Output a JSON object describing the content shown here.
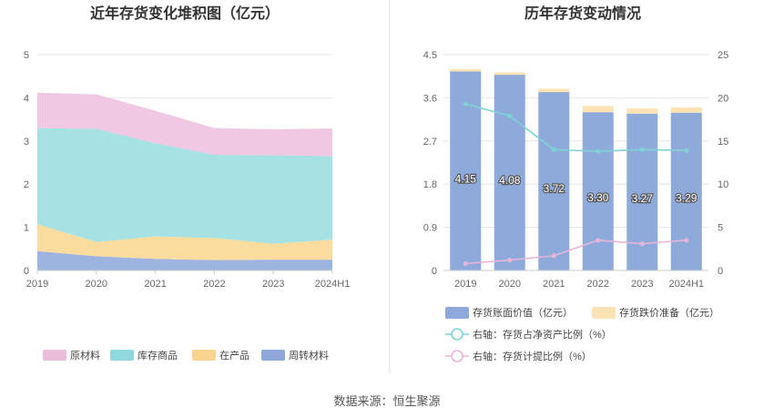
{
  "source_label": "数据来源：恒生聚源",
  "chart_data": [
    {
      "type": "area",
      "stacked": true,
      "title": "近年存货变化堆积图（亿元）",
      "categories": [
        "2019",
        "2020",
        "2021",
        "2022",
        "2023",
        "2024H1"
      ],
      "y_ticks": [
        "0",
        "1",
        "2",
        "3",
        "4",
        "5"
      ],
      "ylim": [
        0,
        5
      ],
      "grid": true,
      "legend_position": "bottom",
      "series": [
        {
          "name": "周转材料",
          "color": "#9db3e0",
          "values": [
            0.45,
            0.33,
            0.27,
            0.24,
            0.25,
            0.25
          ]
        },
        {
          "name": "在产品",
          "color": "#fbdc9f",
          "values": [
            0.62,
            0.33,
            0.52,
            0.51,
            0.37,
            0.46
          ]
        },
        {
          "name": "库存商品",
          "color": "#a6e1e3",
          "values": [
            2.23,
            2.62,
            2.16,
            1.93,
            2.05,
            1.94
          ]
        },
        {
          "name": "原材料",
          "color": "#f0c8e3",
          "values": [
            0.82,
            0.8,
            0.75,
            0.62,
            0.6,
            0.64
          ]
        }
      ],
      "legend_order": [
        "原材料",
        "库存商品",
        "在产品",
        "周转材料"
      ],
      "legend_colors": {
        "原材料": "#ebbddb",
        "库存商品": "#8fd8db",
        "在产品": "#f9d48e",
        "周转材料": "#8ea8dc"
      }
    },
    {
      "type": "bar",
      "title": "历年存货变动情况",
      "categories": [
        "2019",
        "2020",
        "2021",
        "2022",
        "2023",
        "2024H1"
      ],
      "y_left_ticks": [
        "0",
        "0.9",
        "1.8",
        "2.7",
        "3.6",
        "4.5"
      ],
      "ylim_left": [
        0,
        4.5
      ],
      "y_right_ticks": [
        "0",
        "5",
        "10",
        "15",
        "20",
        "25"
      ],
      "ylim_right": [
        0,
        25
      ],
      "grid": true,
      "legend_position": "bottom",
      "bars": {
        "name": "存货账面价值（亿元）",
        "color": "#8eaadb",
        "values": [
          4.15,
          4.08,
          3.72,
          3.3,
          3.27,
          3.29
        ],
        "labels": [
          "4.15",
          "4.08",
          "3.72",
          "3.30",
          "3.27",
          "3.29"
        ]
      },
      "bars_stacked": {
        "name": "存货跌价准备（亿元）",
        "color": "#fde2b4",
        "values": [
          0.05,
          0.05,
          0.07,
          0.13,
          0.11,
          0.11
        ]
      },
      "lines": [
        {
          "name": "右轴：存货占净资产比例（%）",
          "color": "#7fd3d6",
          "axis": "right",
          "values": [
            19.3,
            17.9,
            14.0,
            13.8,
            14.0,
            13.9
          ]
        },
        {
          "name": "右轴：存货计提比例（%）",
          "color": "#e8b4d8",
          "axis": "right",
          "values": [
            0.8,
            1.2,
            1.7,
            3.5,
            3.1,
            3.5
          ]
        }
      ]
    }
  ]
}
